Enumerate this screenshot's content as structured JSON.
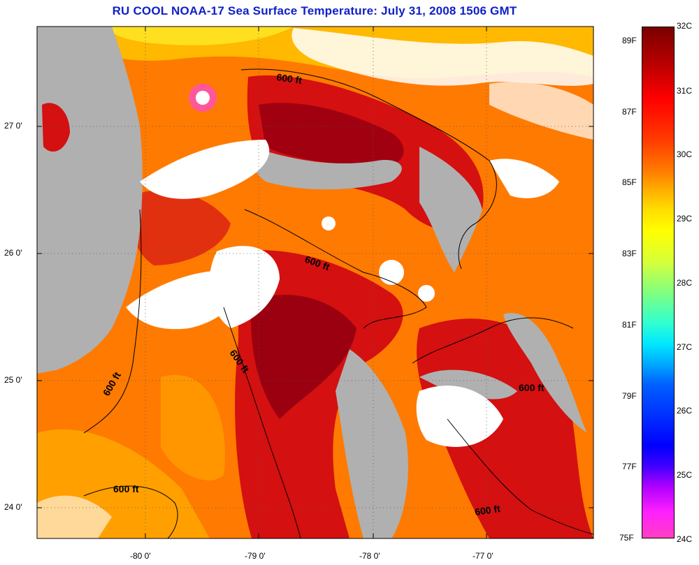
{
  "title": "RU COOL  NOAA-17  Sea Surface Temperature:  July 31, 2008 1506 GMT",
  "axes": {
    "lat_ticks": [
      "27 0'",
      "26 0'",
      "25 0'",
      "24 0'"
    ],
    "lon_ticks": [
      "-80 0'",
      "-79 0'",
      "-78 0'",
      "-77 0'"
    ]
  },
  "contour_labels": [
    "600 ft",
    "600 ft",
    "600 ft",
    "600 ft",
    "600 ft",
    "600 ft",
    "600 ft"
  ],
  "colorbar": {
    "fahrenheit": [
      "89F",
      "87F",
      "85F",
      "83F",
      "81F",
      "79F",
      "77F",
      "75F"
    ],
    "celsius": [
      "32C",
      "31C",
      "30C",
      "29C",
      "28C",
      "27C",
      "26C",
      "25C",
      "24C"
    ]
  },
  "colors": {
    "title": "#1020c8",
    "land": "#b0b0b0",
    "water_base": "#ff7a00",
    "warm": "#d01010",
    "hot": "#900010",
    "cloud": "#ffffff"
  }
}
